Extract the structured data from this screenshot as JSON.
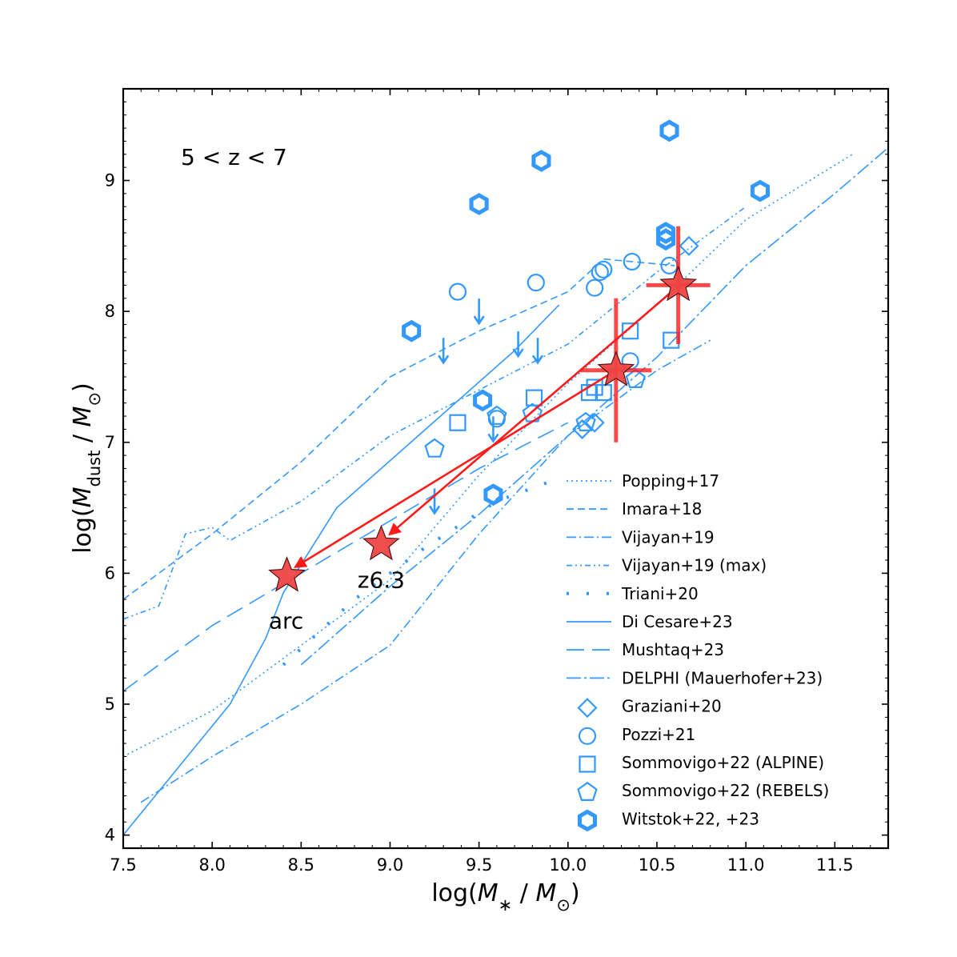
{
  "chart_data": {
    "type": "scatter",
    "title": "",
    "annotation": "5 < z < 7",
    "xlabel": {
      "prefix": "log(",
      "sym": "M",
      "sub": "∗",
      "mid": " / ",
      "sym2": "M",
      "sub2": "⊙",
      "suffix": ")"
    },
    "ylabel": {
      "prefix": "log(",
      "sym": "M",
      "sub": "dust",
      "mid": " / ",
      "sym2": "M",
      "sub2": "⊙",
      "suffix": ")"
    },
    "xlim": [
      7.5,
      11.8
    ],
    "ylim": [
      3.9,
      9.7
    ],
    "xticks": [
      7.5,
      8.0,
      8.5,
      9.0,
      9.5,
      10.0,
      10.5,
      11.0,
      11.5
    ],
    "xtick_labels": [
      "7.5",
      "8.0",
      "8.5",
      "9.0",
      "9.5",
      "10.0",
      "10.5",
      "11.0",
      "11.5"
    ],
    "yticks": [
      4,
      5,
      6,
      7,
      8,
      9
    ],
    "ytick_labels": [
      "4",
      "5",
      "6",
      "7",
      "8",
      "9"
    ],
    "colors": {
      "blue": "#3399ff",
      "red": "#ff1a1a",
      "star": "#ee4444"
    },
    "lines": [
      {
        "name": "Popping+17",
        "dash": "2,4",
        "points": [
          [
            7.5,
            4.6
          ],
          [
            8,
            4.95
          ],
          [
            8.5,
            5.45
          ],
          [
            9,
            5.95
          ],
          [
            9.5,
            6.75
          ],
          [
            10,
            7.45
          ],
          [
            10.5,
            8.05
          ],
          [
            11,
            8.7
          ],
          [
            11.6,
            9.2
          ]
        ]
      },
      {
        "name": "Imara+18",
        "dash": "9,5",
        "points": [
          [
            7.5,
            5.8
          ],
          [
            8,
            6.3
          ],
          [
            8.5,
            6.85
          ],
          [
            9,
            7.5
          ],
          [
            9.5,
            7.85
          ],
          [
            10,
            8.15
          ],
          [
            10.2,
            8.4
          ],
          [
            10.6,
            8.35
          ]
        ]
      },
      {
        "name": "Vijayan+19",
        "dash": "12,4,2,4",
        "points": [
          [
            7.6,
            4.25
          ],
          [
            8,
            4.6
          ],
          [
            8.5,
            5
          ],
          [
            9,
            5.45
          ],
          [
            9.5,
            6.3
          ],
          [
            10,
            7.05
          ],
          [
            10.5,
            7.55
          ],
          [
            10.8,
            7.78
          ]
        ]
      },
      {
        "name": "Vijayan+19 (max)",
        "dash": "7,4,2,4,2,4",
        "points": [
          [
            7.5,
            5.65
          ],
          [
            7.7,
            5.75
          ],
          [
            7.85,
            6.3
          ],
          [
            8,
            6.35
          ],
          [
            8.1,
            6.25
          ],
          [
            8.3,
            6.4
          ],
          [
            8.5,
            6.55
          ],
          [
            9,
            7.05
          ],
          [
            9.5,
            7.4
          ],
          [
            10,
            7.75
          ],
          [
            10.5,
            8.3
          ],
          [
            11,
            8.8
          ]
        ]
      },
      {
        "name": "Triani+20",
        "dash": "3,22",
        "width": 4,
        "points": [
          [
            8.4,
            5.3
          ],
          [
            8.8,
            5.8
          ],
          [
            9.2,
            6.2
          ],
          [
            9.6,
            6.55
          ],
          [
            9.9,
            6.7
          ]
        ]
      },
      {
        "name": "Di Cesare+23",
        "dash": "",
        "points": [
          [
            7.5,
            4
          ],
          [
            7.8,
            4.5
          ],
          [
            8.1,
            5
          ],
          [
            8.3,
            5.5
          ],
          [
            8.4,
            5.85
          ],
          [
            8.7,
            6.5
          ],
          [
            9.2,
            7.1
          ],
          [
            9.7,
            7.7
          ],
          [
            9.95,
            8.05
          ]
        ]
      },
      {
        "name": "Mushtaq+23",
        "dash": "22,10",
        "points": [
          [
            7.5,
            5.1
          ],
          [
            8,
            5.6
          ],
          [
            8.5,
            6.0
          ],
          [
            9,
            6.4
          ],
          [
            9.5,
            6.8
          ],
          [
            10,
            7.15
          ]
        ]
      },
      {
        "name": "DELPHI (Mauerhofer+23)",
        "dash": "18,4,3,4",
        "points": [
          [
            8.5,
            5.3
          ],
          [
            9,
            5.9
          ],
          [
            9.5,
            6.45
          ],
          [
            10,
            7.05
          ],
          [
            10.5,
            7.65
          ],
          [
            11,
            8.35
          ],
          [
            11.5,
            8.9
          ],
          [
            11.8,
            9.25
          ]
        ]
      }
    ],
    "upper_limits": [
      [
        9.5,
        8.0
      ],
      [
        9.72,
        7.75
      ],
      [
        9.83,
        7.7
      ],
      [
        9.3,
        7.7
      ],
      [
        9.58,
        7.1
      ],
      [
        9.25,
        6.55
      ]
    ],
    "scatter_series": [
      {
        "name": "Graziani+20",
        "marker": "diamond",
        "points": [
          [
            10.15,
            7.15
          ],
          [
            10.08,
            7.1
          ],
          [
            10.68,
            8.5
          ]
        ]
      },
      {
        "name": "Pozzi+21",
        "marker": "circle",
        "points": [
          [
            9.38,
            8.15
          ],
          [
            9.82,
            8.22
          ],
          [
            10.15,
            8.18
          ],
          [
            10.18,
            8.3
          ],
          [
            10.2,
            8.32
          ],
          [
            10.36,
            8.38
          ],
          [
            10.57,
            8.35
          ],
          [
            10.35,
            7.62
          ],
          [
            9.6,
            7.18
          ]
        ]
      },
      {
        "name": "Sommovigo+22 (ALPINE)",
        "marker": "square",
        "points": [
          [
            9.38,
            7.15
          ],
          [
            9.81,
            7.34
          ],
          [
            10.15,
            7.42
          ],
          [
            10.2,
            7.38
          ],
          [
            10.35,
            7.85
          ],
          [
            10.58,
            7.78
          ],
          [
            10.12,
            7.38
          ]
        ]
      },
      {
        "name": "Sommovigo+22 (REBELS)",
        "marker": "pentagon",
        "points": [
          [
            9.25,
            6.95
          ],
          [
            9.6,
            7.2
          ],
          [
            9.8,
            7.22
          ],
          [
            10.1,
            7.15
          ],
          [
            10.38,
            7.48
          ]
        ]
      },
      {
        "name": "Witstok+22, +23",
        "marker": "hexagon",
        "points": [
          [
            9.5,
            8.82
          ],
          [
            9.85,
            9.15
          ],
          [
            10.57,
            9.38
          ],
          [
            11.08,
            8.92
          ],
          [
            10.55,
            8.6
          ],
          [
            10.55,
            8.55
          ],
          [
            9.12,
            7.85
          ],
          [
            9.52,
            7.32
          ],
          [
            9.58,
            6.6
          ]
        ]
      }
    ],
    "stars": [
      {
        "label": "arc",
        "x": 8.42,
        "y": 5.98
      },
      {
        "label": "z6.3",
        "x": 8.95,
        "y": 6.22
      },
      {
        "label": "",
        "x": 10.27,
        "y": 7.55,
        "xerr": 0.2,
        "yerr": 0.55
      },
      {
        "label": "",
        "x": 10.62,
        "y": 8.2,
        "xerr": 0.18,
        "yerr": 0.45
      }
    ],
    "arrows": [
      {
        "from": [
          10.27,
          7.55
        ],
        "to": [
          8.47,
          6.05
        ]
      },
      {
        "from": [
          10.6,
          8.17
        ],
        "to": [
          9.0,
          6.3
        ]
      }
    ],
    "legend": {
      "placement": "lower-right",
      "entries": [
        {
          "label": "Popping+17",
          "kind": "line",
          "ref": 0
        },
        {
          "label": "Imara+18",
          "kind": "line",
          "ref": 1
        },
        {
          "label": "Vijayan+19",
          "kind": "line",
          "ref": 2
        },
        {
          "label": "Vijayan+19 (max)",
          "kind": "line",
          "ref": 3
        },
        {
          "label": "Triani+20",
          "kind": "line",
          "ref": 4
        },
        {
          "label": "Di Cesare+23",
          "kind": "line",
          "ref": 5
        },
        {
          "label": "Mushtaq+23",
          "kind": "line",
          "ref": 6
        },
        {
          "label": "DELPHI (Mauerhofer+23)",
          "kind": "line",
          "ref": 7
        },
        {
          "label": "Graziani+20",
          "kind": "marker",
          "marker": "diamond"
        },
        {
          "label": "Pozzi+21",
          "kind": "marker",
          "marker": "circle"
        },
        {
          "label": "Sommovigo+22 (ALPINE)",
          "kind": "marker",
          "marker": "square"
        },
        {
          "label": "Sommovigo+22 (REBELS)",
          "kind": "marker",
          "marker": "pentagon"
        },
        {
          "label": "Witstok+22, +23",
          "kind": "marker",
          "marker": "hexagon"
        }
      ]
    }
  }
}
